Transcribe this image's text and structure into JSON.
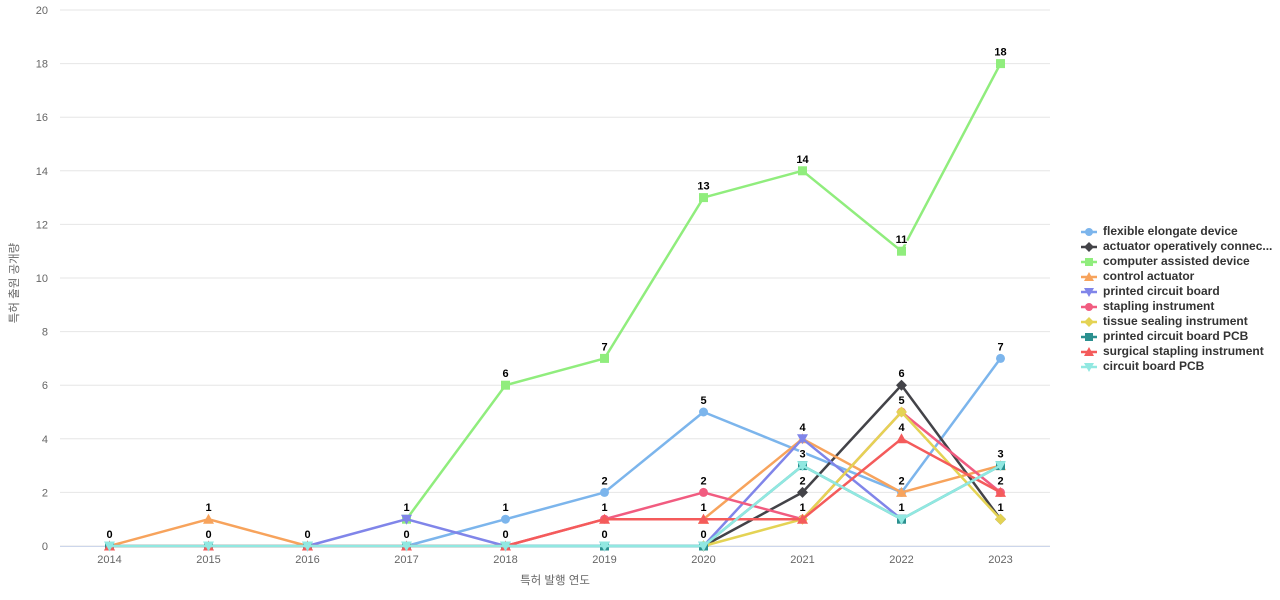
{
  "chart_data": {
    "type": "line",
    "title": "",
    "xlabel": "특허 발행 연도",
    "ylabel": "특허 출원 공개량",
    "categories": [
      "2014",
      "2015",
      "2016",
      "2017",
      "2018",
      "2019",
      "2020",
      "2021",
      "2022",
      "2023"
    ],
    "ylim": [
      0,
      20
    ],
    "y_tick_step": 2,
    "y_ticks": [
      0,
      2,
      4,
      6,
      8,
      10,
      12,
      14,
      16,
      18,
      20
    ],
    "grid": "horizontal-only",
    "legend_position": "right",
    "grid_color": "#e6e6e6",
    "x_axis_line_color": "#ccd6eb",
    "tick_label_color": "#666666",
    "legend_text_color": "#333333",
    "series": [
      {
        "name": "flexible elongate device",
        "color": "#7cb5ec",
        "marker": "circle",
        "connect_gaps": true,
        "values": [
          null,
          null,
          null,
          0,
          1,
          2,
          5,
          null,
          2,
          7
        ]
      },
      {
        "name": "actuator operatively connec...",
        "color": "#434348",
        "marker": "diamond",
        "connect_gaps": false,
        "values": [
          null,
          null,
          null,
          null,
          null,
          null,
          0,
          2,
          6,
          1
        ]
      },
      {
        "name": "computer assisted device",
        "color": "#90ed7d",
        "marker": "square",
        "connect_gaps": false,
        "values": [
          null,
          null,
          null,
          1,
          6,
          7,
          13,
          14,
          11,
          18
        ]
      },
      {
        "name": "control actuator",
        "color": "#f7a35c",
        "marker": "triangle",
        "connect_gaps": false,
        "values": [
          0,
          1,
          0,
          null,
          null,
          null,
          1,
          4,
          2,
          3
        ]
      },
      {
        "name": "printed circuit board",
        "color": "#8085e9",
        "marker": "triangle-down",
        "connect_gaps": false,
        "values": [
          null,
          null,
          0,
          1,
          0,
          0,
          0,
          4,
          1,
          null
        ]
      },
      {
        "name": "stapling instrument",
        "color": "#f15c80",
        "marker": "circle",
        "connect_gaps": false,
        "values": [
          null,
          null,
          null,
          null,
          0,
          1,
          2,
          1,
          5,
          2
        ]
      },
      {
        "name": "tissue sealing instrument",
        "color": "#e4d354",
        "marker": "diamond",
        "connect_gaps": false,
        "values": [
          null,
          null,
          null,
          null,
          null,
          null,
          0,
          1,
          5,
          1
        ]
      },
      {
        "name": "printed circuit board PCB",
        "color": "#2b908f",
        "marker": "square",
        "connect_gaps": false,
        "values": [
          0,
          0,
          0,
          0,
          0,
          0,
          0,
          3,
          1,
          3
        ]
      },
      {
        "name": "surgical stapling instrument",
        "color": "#f45b5b",
        "marker": "triangle",
        "connect_gaps": false,
        "values": [
          0,
          0,
          0,
          0,
          0,
          1,
          1,
          1,
          4,
          2
        ]
      },
      {
        "name": "circuit board PCB",
        "color": "#91e8e1",
        "marker": "triangle-down",
        "connect_gaps": false,
        "values": [
          0,
          0,
          0,
          0,
          0,
          0,
          0,
          3,
          1,
          3
        ]
      }
    ]
  }
}
